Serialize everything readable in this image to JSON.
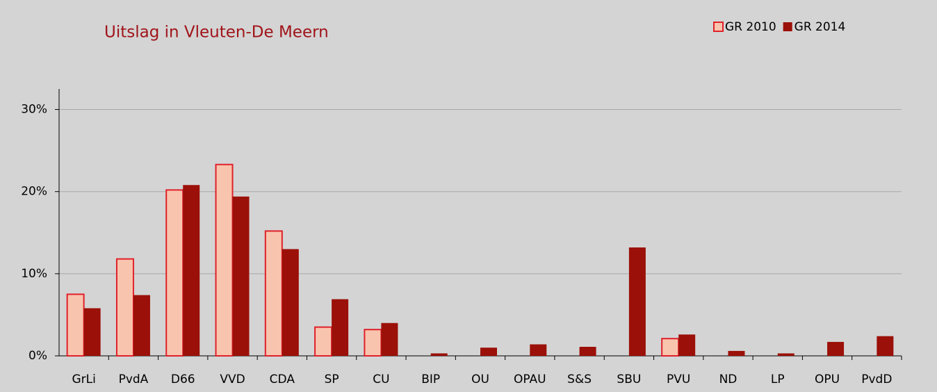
{
  "chart_data": {
    "type": "bar",
    "title": "Uitslag in Vleuten-De Meern",
    "categories": [
      "GrLi",
      "PvdA",
      "D66",
      "VVD",
      "CDA",
      "SP",
      "CU",
      "BIP",
      "OU",
      "OPAU",
      "S&S",
      "SBU",
      "PVU",
      "ND",
      "LP",
      "OPU",
      "PvdD"
    ],
    "series": [
      {
        "name": "GR 2010",
        "color": "#f9c4ad",
        "edge": "#e0202a",
        "values": [
          7.5,
          11.8,
          20.2,
          23.3,
          15.2,
          3.5,
          3.2,
          null,
          null,
          null,
          null,
          null,
          2.1,
          null,
          null,
          null,
          null
        ]
      },
      {
        "name": "GR 2014",
        "color": "#9b1008",
        "values": [
          5.8,
          7.4,
          20.8,
          19.4,
          13.0,
          6.9,
          4.0,
          0.3,
          1.0,
          1.4,
          1.1,
          13.2,
          2.6,
          0.6,
          0.3,
          1.7,
          2.4
        ]
      }
    ],
    "ylim": [
      0,
      32.5
    ],
    "yticks": [
      {
        "value": 0,
        "label": "0%"
      },
      {
        "value": 10,
        "label": "10%"
      },
      {
        "value": 20,
        "label": "20%"
      },
      {
        "value": 30,
        "label": "30%"
      }
    ],
    "grid": true,
    "legend": "top-right"
  }
}
